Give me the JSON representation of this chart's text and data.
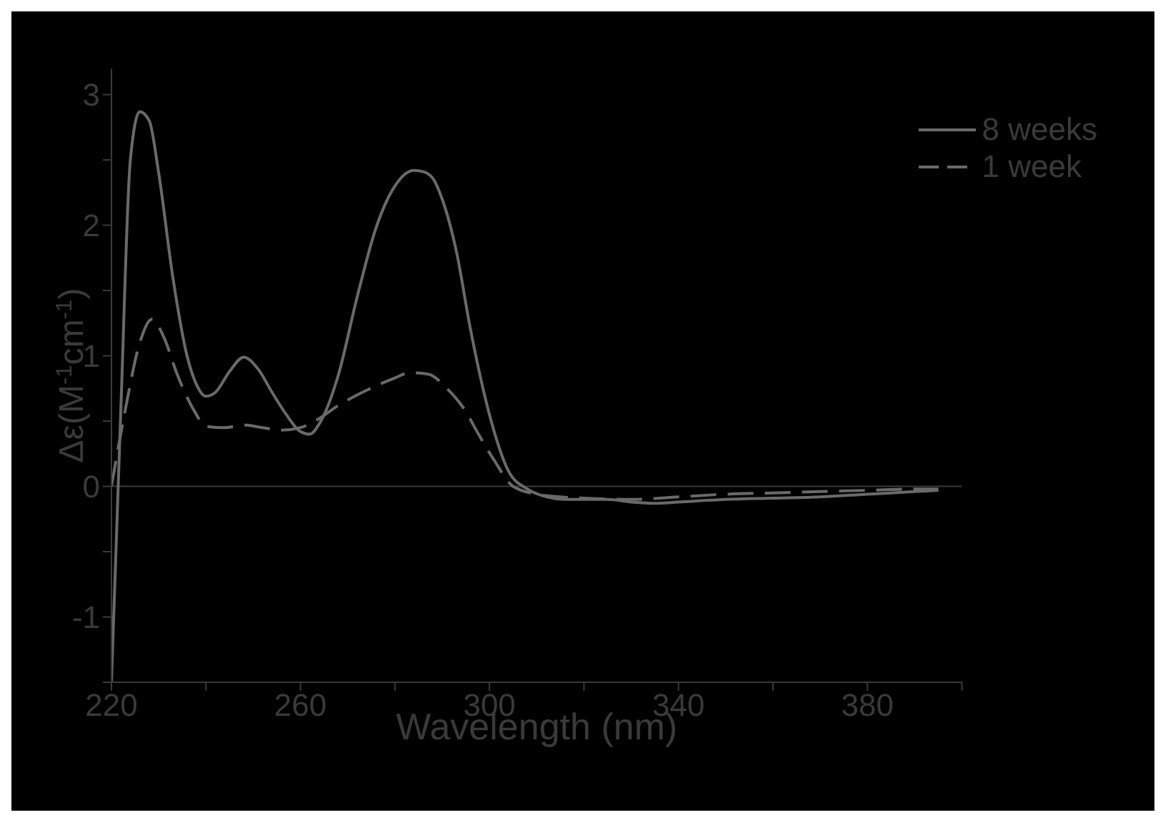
{
  "chart_data": {
    "type": "line",
    "xlabel": "Wavelength (nm)",
    "ylabel": "Δε(M$^{-1}$cm$^{-1}$)",
    "xlim": [
      220,
      400
    ],
    "xticks": [
      220,
      {
        "value": 240,
        "label": null
      },
      260,
      {
        "value": 280,
        "label": null
      },
      300,
      {
        "value": 320,
        "label": null
      },
      340,
      {
        "value": 360,
        "label": null
      },
      380,
      {
        "value": 400,
        "label": null
      }
    ],
    "ylim": [
      -1.5,
      3.2
    ],
    "yticks": [
      {
        "value": -1.5,
        "label": null
      },
      -1,
      {
        "value": -0.5,
        "label": null
      },
      0,
      {
        "value": 0.5,
        "label": null
      },
      1,
      {
        "value": 1.5,
        "label": null
      },
      2,
      {
        "value": 2.5,
        "label": null
      },
      3
    ],
    "legend": "top right",
    "grid": false,
    "ref_lines": [
      {
        "axis": "y",
        "value": 0
      }
    ],
    "series": [
      {
        "name": "8 weeks",
        "color": "#6a6a6a",
        "line_style": "solid",
        "x": [
          220,
          222,
          224,
          226,
          228,
          230,
          233,
          236,
          238,
          240,
          242,
          245,
          248,
          251,
          254,
          257,
          260,
          262,
          264,
          268,
          272,
          276,
          280,
          284,
          286,
          288,
          290,
          293,
          296,
          300,
          304,
          308,
          312,
          316,
          320,
          325,
          330,
          335,
          340,
          350,
          360,
          370,
          380,
          390,
          395
        ],
        "values": [
          -1.5,
          0.6,
          2.5,
          2.87,
          2.8,
          2.4,
          1.6,
          1.0,
          0.78,
          0.69,
          0.72,
          0.88,
          0.99,
          0.9,
          0.72,
          0.55,
          0.42,
          0.4,
          0.48,
          0.85,
          1.45,
          1.98,
          2.3,
          2.42,
          2.41,
          2.36,
          2.2,
          1.8,
          1.2,
          0.55,
          0.12,
          -0.02,
          -0.08,
          -0.1,
          -0.1,
          -0.1,
          -0.12,
          -0.13,
          -0.12,
          -0.1,
          -0.09,
          -0.08,
          -0.06,
          -0.04,
          -0.03
        ]
      },
      {
        "name": "1 week",
        "color": "#6a6a6a",
        "line_style": "dashed",
        "x": [
          220,
          223,
          226,
          228.6,
          231,
          234,
          237.5,
          240,
          244,
          248,
          252,
          256,
          260,
          264,
          268,
          272,
          276,
          280,
          283,
          287,
          291,
          294.5,
          298,
          301,
          305,
          310,
          315,
          320,
          330,
          340,
          350,
          360,
          370,
          380,
          390,
          395
        ],
        "values": [
          0,
          0.6,
          1.1,
          1.28,
          1.15,
          0.85,
          0.58,
          0.46,
          0.45,
          0.47,
          0.45,
          0.43,
          0.45,
          0.52,
          0.62,
          0.7,
          0.77,
          0.83,
          0.87,
          0.86,
          0.75,
          0.6,
          0.38,
          0.2,
          0.0,
          -0.06,
          -0.08,
          -0.09,
          -0.1,
          -0.08,
          -0.06,
          -0.05,
          -0.04,
          -0.03,
          -0.02,
          -0.02
        ]
      }
    ]
  }
}
